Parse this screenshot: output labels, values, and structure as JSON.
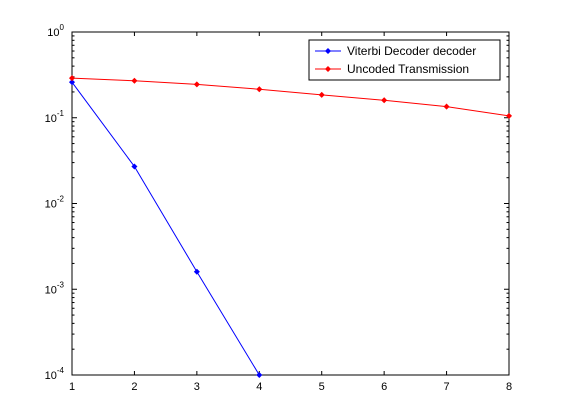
{
  "chart_data": {
    "type": "line",
    "title": "",
    "xlabel": "",
    "ylabel": "",
    "y_scale": "log",
    "xlim": [
      1,
      8
    ],
    "ylim": [
      0.0001,
      1
    ],
    "x_ticks": [
      1,
      2,
      3,
      4,
      5,
      6,
      7,
      8
    ],
    "x_tick_labels": [
      "1",
      "2",
      "3",
      "4",
      "5",
      "6",
      "7",
      "8"
    ],
    "y_ticks": [
      0.0001,
      0.001,
      0.01,
      0.1,
      1
    ],
    "y_tick_labels": [
      {
        "base": "10",
        "exp": "-4"
      },
      {
        "base": "10",
        "exp": "-3"
      },
      {
        "base": "10",
        "exp": "-2"
      },
      {
        "base": "10",
        "exp": "-1"
      },
      {
        "base": "10",
        "exp": "0"
      }
    ],
    "grid": false,
    "legend_position": "top-right",
    "series": [
      {
        "name": "Viterbi Decoder decoder",
        "color": "#0000ff",
        "marker": "diamond",
        "x": [
          1,
          2,
          3,
          4
        ],
        "y": [
          0.26,
          0.027,
          0.0016,
          0.0001
        ]
      },
      {
        "name": "Uncoded Transmission",
        "color": "#ff0000",
        "marker": "diamond",
        "x": [
          1,
          2,
          3,
          4,
          5,
          6,
          7,
          8
        ],
        "y": [
          0.29,
          0.27,
          0.245,
          0.215,
          0.185,
          0.16,
          0.135,
          0.105
        ]
      }
    ]
  }
}
